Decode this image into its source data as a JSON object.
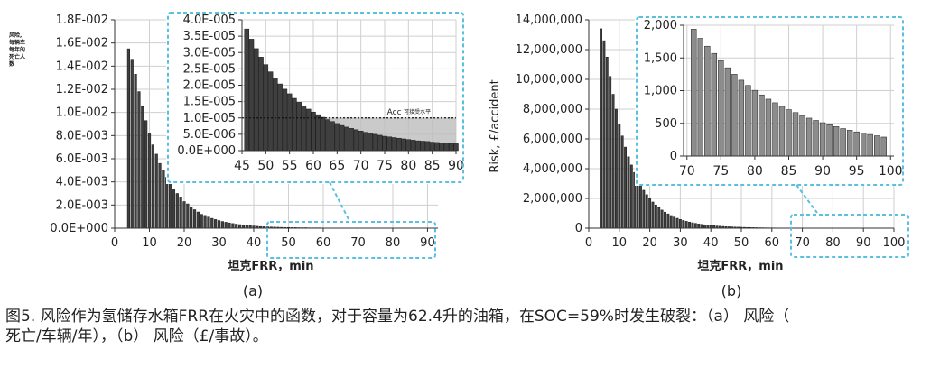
{
  "figure": {
    "caption_lines": [
      "图5. 风险作为氢储存水箱FRR在火灾中的函数，对于容量为62.4升的油箱，在SOC=59%时发生破裂：（a） 风险（",
      "死亡/车辆/年），（b） 风险（£/事故）。"
    ]
  },
  "chart_data": [
    {
      "id": "a-main",
      "type": "bar",
      "panel_label": "(a)",
      "xlabel": "坦克FRR，min",
      "ylabel_lines": [
        "风险,",
        "每辆车",
        "每年的",
        "死亡人",
        "数"
      ],
      "xlim": [
        0,
        93
      ],
      "ylim": [
        0,
        0.018
      ],
      "xticks": [
        0,
        10,
        20,
        30,
        40,
        50,
        60,
        70,
        80,
        90
      ],
      "ytick_values": [
        0,
        0.002,
        0.004,
        0.006,
        0.008,
        0.01,
        0.012,
        0.014,
        0.016,
        0.018
      ],
      "ytick_labels": [
        "0.0E+000",
        "2.0E-003",
        "4.0E-003",
        "6.0E-003",
        "8.0E-003",
        "1.0E-002",
        "1.2E-002",
        "1.4E-002",
        "1.6E-002",
        "1.8E-002"
      ],
      "grid": true,
      "x": [
        4,
        5,
        6,
        7,
        8,
        9,
        10,
        11,
        12,
        13,
        14,
        15,
        16,
        17,
        18,
        19,
        20,
        21,
        22,
        23,
        24,
        25,
        26,
        27,
        28,
        29,
        30,
        31,
        32,
        33,
        34,
        35,
        36,
        37,
        38,
        39,
        40,
        41,
        42,
        43,
        44,
        45,
        46,
        47,
        48,
        49,
        50,
        51,
        52,
        53,
        54,
        55,
        56,
        57,
        58,
        59,
        60,
        61,
        62,
        63,
        64,
        65,
        66,
        67,
        68,
        69,
        70,
        71,
        72,
        73,
        74,
        75,
        76,
        77,
        78,
        79,
        80,
        81,
        82,
        83,
        84,
        85,
        86,
        87,
        88,
        89,
        90
      ],
      "values": [
        0.0155,
        0.0146,
        0.0133,
        0.0118,
        0.0105,
        0.0093,
        0.0082,
        0.0072,
        0.0064,
        0.0056,
        0.005,
        0.0044,
        0.0039,
        0.0034,
        0.003,
        0.0027,
        0.0023,
        0.0021,
        0.0018,
        0.0016,
        0.0014,
        0.0012,
        0.0011,
        0.00096,
        0.00085,
        0.00075,
        0.00066,
        0.00058,
        0.00051,
        0.00045,
        0.0004,
        0.00035,
        0.00031,
        0.00027,
        0.00024,
        0.00021,
        0.00019,
        0.00016,
        0.00014,
        0.00013,
        0.00011,
        0.0001,
        9e-05,
        8e-05,
        7e-05,
        6e-05,
        6e-05,
        5e-05,
        5e-05,
        4e-05,
        4e-05,
        4e-05,
        3e-05,
        3e-05,
        3e-05,
        3e-05,
        2e-05,
        2e-05,
        2e-05,
        2e-05,
        2e-05,
        2e-05,
        2e-05,
        1e-05,
        1e-05,
        1e-05,
        1e-05,
        1e-05,
        1e-05,
        1e-05,
        1e-05,
        1e-05,
        1e-05,
        1e-05,
        1e-05,
        1e-05,
        1e-05,
        1e-05,
        1e-05,
        1e-05,
        1e-05,
        1e-05,
        1e-05,
        1e-05,
        1e-05,
        1e-05,
        1e-05
      ]
    },
    {
      "id": "a-inset",
      "type": "bar",
      "xlim": [
        45,
        90
      ],
      "ylim": [
        0,
        4e-05
      ],
      "xticks": [
        45,
        50,
        55,
        60,
        65,
        70,
        75,
        80,
        85,
        90
      ],
      "ytick_values": [
        0,
        5e-06,
        1e-05,
        1.5e-05,
        2e-05,
        2.5e-05,
        3e-05,
        3.5e-05,
        4e-05
      ],
      "ytick_labels": [
        "0.0E+000",
        "5.0E-006",
        "1.0E-005",
        "1.5E-005",
        "2.0E-005",
        "2.5E-005",
        "3.0E-005",
        "3.5E-005",
        "4.0E-005"
      ],
      "grid": true,
      "x": [
        46,
        47,
        48,
        49,
        50,
        51,
        52,
        53,
        54,
        55,
        56,
        57,
        58,
        59,
        60,
        61,
        62,
        63,
        64,
        65,
        66,
        67,
        68,
        69,
        70,
        71,
        72,
        73,
        74,
        75,
        76,
        77,
        78,
        79,
        80,
        81,
        82,
        83,
        84,
        85,
        86,
        87,
        88,
        89,
        90
      ],
      "values": [
        3.72e-05,
        3.41e-05,
        3.12e-05,
        2.86e-05,
        2.63e-05,
        2.41e-05,
        2.22e-05,
        2.04e-05,
        1.88e-05,
        1.74e-05,
        1.6e-05,
        1.48e-05,
        1.37e-05,
        1.27e-05,
        1.18e-05,
        1.1e-05,
        1.02e-05,
        9.5e-06,
        8.9e-06,
        8.3e-06,
        7.7e-06,
        7.2e-06,
        6.8e-06,
        6.4e-06,
        6e-06,
        5.6e-06,
        5.3e-06,
        5e-06,
        4.7e-06,
        4.4e-06,
        4.2e-06,
        4e-06,
        3.8e-06,
        3.6e-06,
        3.4e-06,
        3.2e-06,
        3e-06,
        2.9e-06,
        2.8e-06,
        2.6e-06,
        2.5e-06,
        2.4e-06,
        2.3e-06,
        2.2e-06,
        2.1e-06
      ],
      "threshold": {
        "value": 1e-05,
        "label_prefix": "Acc",
        "label": "可接受水平"
      }
    },
    {
      "id": "b-main",
      "type": "bar",
      "panel_label": "(b)",
      "xlabel": "坦克FRR，min",
      "ylabel": "Risk, £/accident",
      "xlim": [
        0,
        100
      ],
      "ylim": [
        0,
        14000000
      ],
      "xticks": [
        0,
        10,
        20,
        30,
        40,
        50,
        60,
        70,
        80,
        90,
        100
      ],
      "ytick_values": [
        0,
        2000000,
        4000000,
        6000000,
        8000000,
        10000000,
        12000000,
        14000000
      ],
      "ytick_labels": [
        "0",
        "2,000,000",
        "4,000,000",
        "6,000,000",
        "8,000,000",
        "10,000,000",
        "12,000,000",
        "14,000,000"
      ],
      "grid": true,
      "x": [
        4,
        5,
        6,
        7,
        8,
        9,
        10,
        11,
        12,
        13,
        14,
        15,
        16,
        17,
        18,
        19,
        20,
        21,
        22,
        23,
        24,
        25,
        26,
        27,
        28,
        29,
        30,
        31,
        32,
        33,
        34,
        35,
        36,
        37,
        38,
        39,
        40,
        41,
        42,
        43,
        44,
        45,
        46,
        47,
        48,
        49,
        50,
        51,
        52,
        53,
        54,
        55,
        56,
        57,
        58,
        59,
        60,
        61,
        62,
        63,
        64,
        65,
        66,
        67,
        68,
        69,
        70,
        71,
        72,
        73,
        74,
        75,
        76,
        77,
        78,
        79,
        80,
        81,
        82,
        83,
        84,
        85,
        86,
        87,
        88,
        89,
        90,
        91,
        92,
        93,
        94,
        95,
        96,
        97,
        98,
        99
      ],
      "values": [
        13400000,
        12600000,
        11500000,
        10200000,
        9000000,
        8000000,
        7000000,
        6200000,
        5450000,
        4800000,
        4250000,
        3750000,
        3300000,
        2900000,
        2550000,
        2250000,
        2000000,
        1760000,
        1560000,
        1380000,
        1220000,
        1080000,
        960000,
        850000,
        750000,
        665000,
        590000,
        520000,
        460000,
        410000,
        365000,
        325000,
        290000,
        258000,
        230000,
        205000,
        183000,
        163000,
        146000,
        131000,
        117000,
        105000,
        94000,
        84000,
        75000,
        67000,
        60000,
        54000,
        48000,
        43000,
        39000,
        35000,
        31000,
        28000,
        25000,
        22500,
        20000,
        18000,
        16000,
        14500,
        13000,
        11500,
        10000,
        9000,
        8000,
        7000,
        6000,
        5500,
        5000,
        4600,
        4200,
        3900,
        3600,
        3300,
        3000,
        2800,
        2600,
        2400,
        2250,
        2100,
        1950,
        1800,
        1700,
        1600,
        1500,
        1400,
        1300,
        1250,
        1200,
        1100,
        1050,
        1000,
        950,
        900,
        850,
        800
      ]
    },
    {
      "id": "b-inset",
      "type": "bar",
      "xlim": [
        69.5,
        100.5
      ],
      "ylim": [
        0,
        2000
      ],
      "xticks": [
        70,
        75,
        80,
        85,
        90,
        95,
        100
      ],
      "ytick_values": [
        0,
        500,
        1000,
        1500,
        2000
      ],
      "ytick_labels": [
        "0",
        "500",
        "1,000",
        "1,500",
        "2,000"
      ],
      "grid": true,
      "x": [
        71,
        72,
        73,
        74,
        75,
        76,
        77,
        78,
        79,
        80,
        81,
        82,
        83,
        84,
        85,
        86,
        87,
        88,
        89,
        90,
        91,
        92,
        93,
        94,
        95,
        96,
        97,
        98,
        99
      ],
      "values": [
        1940,
        1800,
        1680,
        1570,
        1460,
        1350,
        1250,
        1160,
        1080,
        1005,
        935,
        870,
        815,
        760,
        710,
        665,
        620,
        580,
        545,
        510,
        480,
        450,
        420,
        395,
        370,
        350,
        330,
        310,
        290
      ]
    }
  ],
  "colors": {
    "bar_dark": "#3f3f3f",
    "bar_light": "#8c8c8c",
    "bar_edge": "#1a1a1a",
    "grid": "#cfcfcf",
    "dash_box": "#5bc0e0",
    "threshold_fill": "#bdbdbd",
    "threshold_line": "#111111",
    "axis": "#333333",
    "text": "#222222"
  }
}
